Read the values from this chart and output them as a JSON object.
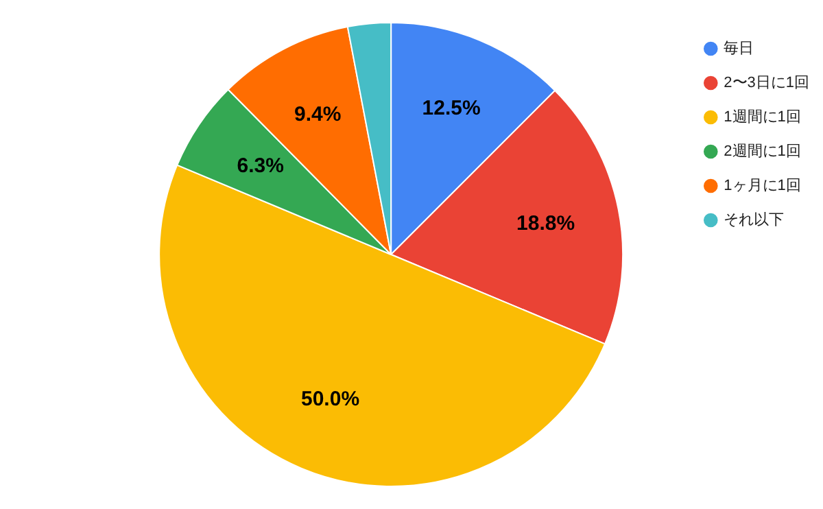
{
  "chart_data": {
    "type": "pie",
    "categories": [
      "毎日",
      "2〜3日に1回",
      "1週間に1回",
      "2週間に1回",
      "1ヶ月に1回",
      "それ以下"
    ],
    "values": [
      12.5,
      18.8,
      50.0,
      6.3,
      9.4,
      3.0
    ],
    "colors": [
      "#4285f4",
      "#ea4335",
      "#fbbc04",
      "#34a853",
      "#ff6d01",
      "#46bdc6"
    ],
    "value_labels": [
      "12.5%",
      "18.8%",
      "50.0%",
      "6.3%",
      "9.4%",
      null
    ],
    "legend": "top right"
  }
}
